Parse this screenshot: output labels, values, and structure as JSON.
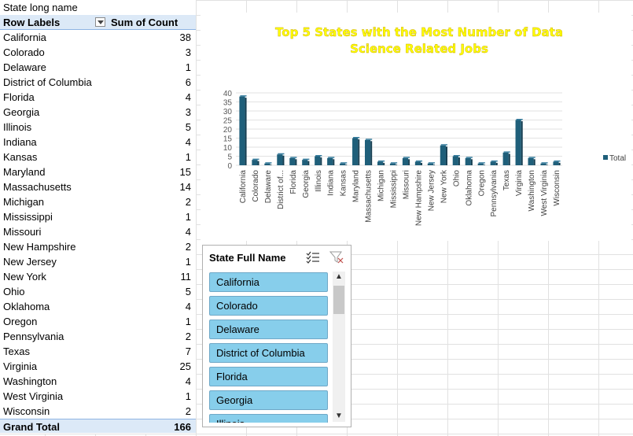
{
  "sheet": {
    "filter_label": "State long name"
  },
  "pivot": {
    "header_label": "Row Labels",
    "header_value": "Sum of Count",
    "rows": [
      {
        "label": "California",
        "value": "38"
      },
      {
        "label": "Colorado",
        "value": "3"
      },
      {
        "label": "Delaware",
        "value": "1"
      },
      {
        "label": "District of Columbia",
        "value": "6"
      },
      {
        "label": "Florida",
        "value": "4"
      },
      {
        "label": "Georgia",
        "value": "3"
      },
      {
        "label": "Illinois",
        "value": "5"
      },
      {
        "label": "Indiana",
        "value": "4"
      },
      {
        "label": "Kansas",
        "value": "1"
      },
      {
        "label": "Maryland",
        "value": "15"
      },
      {
        "label": "Massachusetts",
        "value": "14"
      },
      {
        "label": "Michigan",
        "value": "2"
      },
      {
        "label": "Mississippi",
        "value": "1"
      },
      {
        "label": "Missouri",
        "value": "4"
      },
      {
        "label": "New Hampshire",
        "value": "2"
      },
      {
        "label": "New Jersey",
        "value": "1"
      },
      {
        "label": "New York",
        "value": "11"
      },
      {
        "label": "Ohio",
        "value": "5"
      },
      {
        "label": "Oklahoma",
        "value": "4"
      },
      {
        "label": "Oregon",
        "value": "1"
      },
      {
        "label": "Pennsylvania",
        "value": "2"
      },
      {
        "label": "Texas",
        "value": "7"
      },
      {
        "label": "Virginia",
        "value": "25"
      },
      {
        "label": "Washington",
        "value": "4"
      },
      {
        "label": "West Virginia",
        "value": "1"
      },
      {
        "label": "Wisconsin",
        "value": "2"
      }
    ],
    "total_label": "Grand Total",
    "total_value": "166"
  },
  "chart_data": {
    "type": "bar",
    "title": "Top 5 States with the Most Number of Data Science Related Jobs",
    "title_lines": [
      "Top 5 States with the Most Number of Data",
      "Science Related Jobs"
    ],
    "title_color": "#ffff00",
    "bar_color": "#1f5f7a",
    "categories": [
      "California",
      "Colorado",
      "Delaware",
      "District of...",
      "Florida",
      "Georgia",
      "Illinois",
      "Indiana",
      "Kansas",
      "Maryland",
      "Massachusetts",
      "Michigan",
      "Mississippi",
      "Missouri",
      "New Hampshire",
      "New Jersey",
      "New York",
      "Ohio",
      "Oklahoma",
      "Oregon",
      "Pennsylvania",
      "Texas",
      "Virginia",
      "Washington",
      "West Virginia",
      "Wisconsin"
    ],
    "series": [
      {
        "name": "Total",
        "values": [
          38,
          3,
          1,
          6,
          4,
          3,
          5,
          4,
          1,
          15,
          14,
          2,
          1,
          4,
          2,
          1,
          11,
          5,
          4,
          1,
          2,
          7,
          25,
          4,
          1,
          2
        ]
      }
    ],
    "ylim": [
      0,
      40
    ],
    "yticks": [
      "40",
      "35",
      "30",
      "25",
      "20",
      "15",
      "10",
      "5",
      "0"
    ],
    "grid": true,
    "legend_position": "right"
  },
  "slicer": {
    "title": "State Full Name",
    "items": [
      "California",
      "Colorado",
      "Delaware",
      "District of Columbia",
      "Florida",
      "Georgia",
      "Illinois"
    ],
    "multiselect_icon": "multi-select-icon",
    "clear_filter_icon": "clear-filter-icon"
  }
}
